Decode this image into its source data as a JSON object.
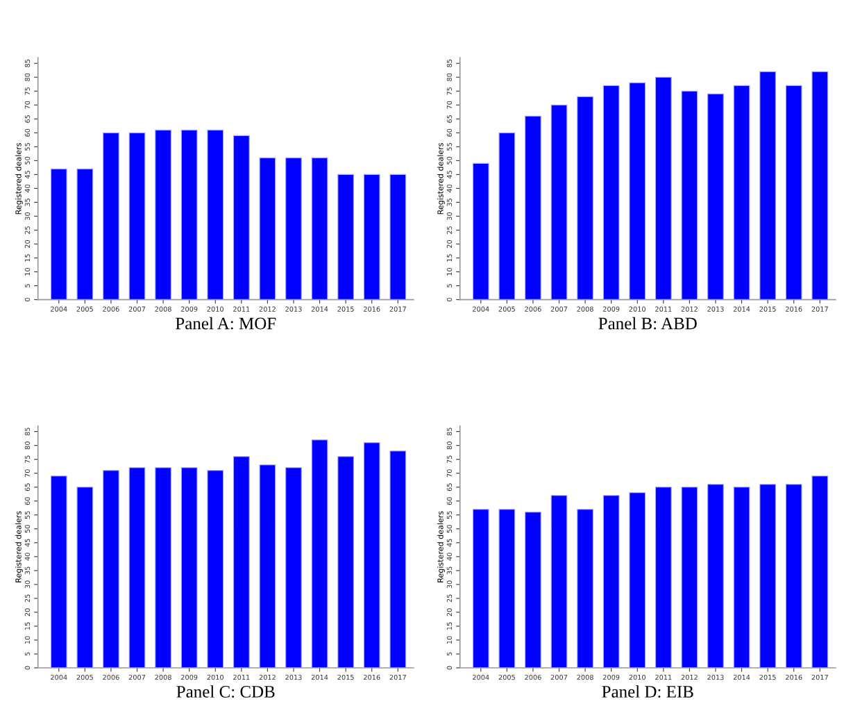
{
  "chart_data": [
    {
      "type": "bar",
      "title": "Panel A: MOF",
      "ylabel": "Registered dealers",
      "categories": [
        "2004",
        "2005",
        "2006",
        "2007",
        "2008",
        "2009",
        "2010",
        "2011",
        "2012",
        "2013",
        "2014",
        "2015",
        "2016",
        "2017"
      ],
      "values": [
        47,
        47,
        60,
        60,
        61,
        61,
        61,
        59,
        51,
        51,
        51,
        45,
        45,
        45
      ],
      "color": "#0000ff",
      "ylim": [
        0,
        87
      ],
      "yticks": [
        0,
        5,
        10,
        15,
        20,
        25,
        30,
        35,
        40,
        45,
        50,
        55,
        60,
        65,
        70,
        75,
        80,
        85
      ],
      "grid": false,
      "legend": false
    },
    {
      "type": "bar",
      "title": "Panel B: ABD",
      "ylabel": "Registered dealers",
      "categories": [
        "2004",
        "2005",
        "2006",
        "2007",
        "2008",
        "2009",
        "2010",
        "2011",
        "2012",
        "2013",
        "2014",
        "2015",
        "2016",
        "2017"
      ],
      "values": [
        49,
        60,
        66,
        70,
        73,
        77,
        78,
        80,
        75,
        74,
        77,
        82,
        77,
        82
      ],
      "color": "#0000ff",
      "ylim": [
        0,
        87
      ],
      "yticks": [
        0,
        5,
        10,
        15,
        20,
        25,
        30,
        35,
        40,
        45,
        50,
        55,
        60,
        65,
        70,
        75,
        80,
        85
      ],
      "grid": false,
      "legend": false
    },
    {
      "type": "bar",
      "title": "Panel C: CDB",
      "ylabel": "Registered dealers",
      "categories": [
        "2004",
        "2005",
        "2006",
        "2007",
        "2008",
        "2009",
        "2010",
        "2011",
        "2012",
        "2013",
        "2014",
        "2015",
        "2016",
        "2017"
      ],
      "values": [
        69,
        65,
        71,
        72,
        72,
        72,
        71,
        76,
        73,
        72,
        82,
        76,
        81,
        78
      ],
      "color": "#0000ff",
      "ylim": [
        0,
        87
      ],
      "yticks": [
        0,
        5,
        10,
        15,
        20,
        25,
        30,
        35,
        40,
        45,
        50,
        55,
        60,
        65,
        70,
        75,
        80,
        85
      ],
      "grid": false,
      "legend": false
    },
    {
      "type": "bar",
      "title": "Panel D: EIB",
      "ylabel": "Registered dealers",
      "categories": [
        "2004",
        "2005",
        "2006",
        "2007",
        "2008",
        "2009",
        "2010",
        "2011",
        "2012",
        "2013",
        "2014",
        "2015",
        "2016",
        "2017"
      ],
      "values": [
        57,
        57,
        56,
        62,
        57,
        62,
        63,
        65,
        65,
        66,
        65,
        66,
        66,
        69
      ],
      "color": "#0000ff",
      "ylim": [
        0,
        87
      ],
      "yticks": [
        0,
        5,
        10,
        15,
        20,
        25,
        30,
        35,
        40,
        45,
        50,
        55,
        60,
        65,
        70,
        75,
        80,
        85
      ],
      "grid": false,
      "legend": false
    }
  ]
}
